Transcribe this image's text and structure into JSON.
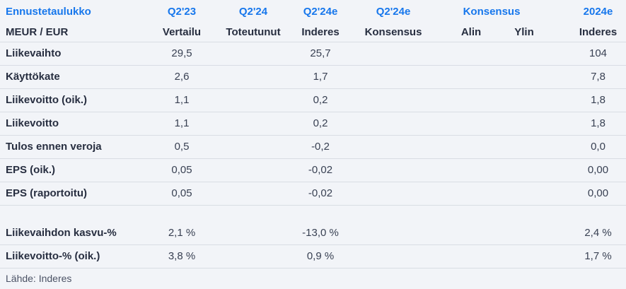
{
  "colors": {
    "accent_blue": "#1777ec",
    "label_text": "#272e40",
    "value_text": "#394153",
    "background": "#f2f4f8",
    "divider": "#d9dde4",
    "source_text": "#4b5265"
  },
  "table": {
    "title": "Ennustetaulukko",
    "unit_label": "MEUR / EUR",
    "period_headers": {
      "q2_23": "Q2'23",
      "q2_24": "Q2'24",
      "q2_24e_inderes": "Q2'24e",
      "q2_24e_konsensus": "Q2'24e",
      "konsensus_span": "Konsensus",
      "y2024e": "2024e"
    },
    "sub_headers": {
      "vertailu": "Vertailu",
      "toteutunut": "Toteutunut",
      "inderes_q": "Inderes",
      "konsensus": "Konsensus",
      "alin": "Alin",
      "ylin": "Ylin",
      "inderes_y": "Inderes"
    },
    "rows": [
      {
        "label": "Liikevaihto",
        "values": [
          "29,5",
          "",
          "25,7",
          "",
          "",
          "",
          "104"
        ]
      },
      {
        "label": "Käyttökate",
        "values": [
          "2,6",
          "",
          "1,7",
          "",
          "",
          "",
          "7,8"
        ]
      },
      {
        "label": "Liikevoitto (oik.)",
        "values": [
          "1,1",
          "",
          "0,2",
          "",
          "",
          "",
          "1,8"
        ]
      },
      {
        "label": "Liikevoitto",
        "values": [
          "1,1",
          "",
          "0,2",
          "",
          "",
          "",
          "1,8"
        ]
      },
      {
        "label": "Tulos ennen veroja",
        "values": [
          "0,5",
          "",
          "-0,2",
          "",
          "",
          "",
          "0,0"
        ]
      },
      {
        "label": "EPS (oik.)",
        "values": [
          "0,05",
          "",
          "-0,02",
          "",
          "",
          "",
          "0,00"
        ]
      },
      {
        "label": "EPS (raportoitu)",
        "values": [
          "0,05",
          "",
          "-0,02",
          "",
          "",
          "",
          "0,00"
        ]
      },
      {
        "label": "Liikevaihdon kasvu-%",
        "values": [
          "2,1 %",
          "",
          "-13,0 %",
          "",
          "",
          "",
          "2,4 %"
        ]
      },
      {
        "label": "Liikevoitto-% (oik.)",
        "values": [
          "3,8 %",
          "",
          "0,9 %",
          "",
          "",
          "",
          "1,7 %"
        ]
      }
    ],
    "source": "Lähde: Inderes"
  }
}
